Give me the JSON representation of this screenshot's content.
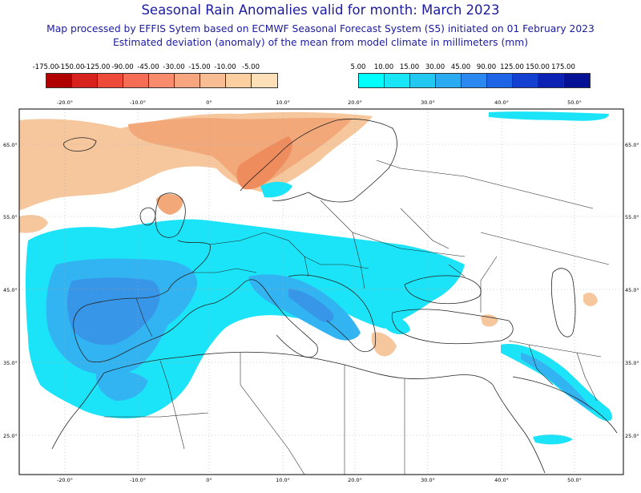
{
  "header": {
    "title": "Seasonal Rain Anomalies valid for month: March 2023",
    "subtitle1": "Map processed by EFFIS Sytem based on ECMWF Seasonal Forecast System (S5) initiated on 01 February 2023",
    "subtitle2": "Estimated deviation (anomaly) of the mean from model climate in millimeters (mm)"
  },
  "legend_negative": {
    "ticks": [
      "-175.00",
      "-150.00",
      "-125.00",
      "-90.00",
      "-45.00",
      "-30.00",
      "-15.00",
      "-10.00",
      "-5.00"
    ],
    "colors": [
      "#b00000",
      "#d8221e",
      "#ee4a3a",
      "#f56d55",
      "#f88c6c",
      "#f8a680",
      "#f8bd93",
      "#fbcf9f",
      "#fde0b8"
    ]
  },
  "legend_positive": {
    "ticks": [
      "5.00",
      "10.00",
      "15.00",
      "30.00",
      "45.00",
      "90.00",
      "125.00",
      "150.00",
      "175.00"
    ],
    "colors": [
      "#00ffff",
      "#18e6f6",
      "#22c8f0",
      "#2aaaf0",
      "#2a88f0",
      "#1e64e6",
      "#1440d2",
      "#0c22b4",
      "#061296"
    ]
  },
  "map": {
    "lon_labels": [
      "-20.0°",
      "-10.0°",
      "0°",
      "10.0°",
      "20.0°",
      "30.0°",
      "40.0°",
      "50.0°"
    ],
    "lat_labels": [
      "65.0°",
      "55.0°",
      "45.0°",
      "35.0°",
      "25.0°"
    ],
    "colors": {
      "land": "#ffffff",
      "border": "#222222",
      "grid": "#aaaaaa",
      "dry_light": "#f6c69c",
      "dry_mid": "#f2a878",
      "dry_dark": "#ee8c5e",
      "wet_light": "#1ce4f8",
      "wet_mid": "#32b4f2",
      "wet_dark": "#3896e8",
      "wet_deep": "#2f6fd6"
    }
  }
}
